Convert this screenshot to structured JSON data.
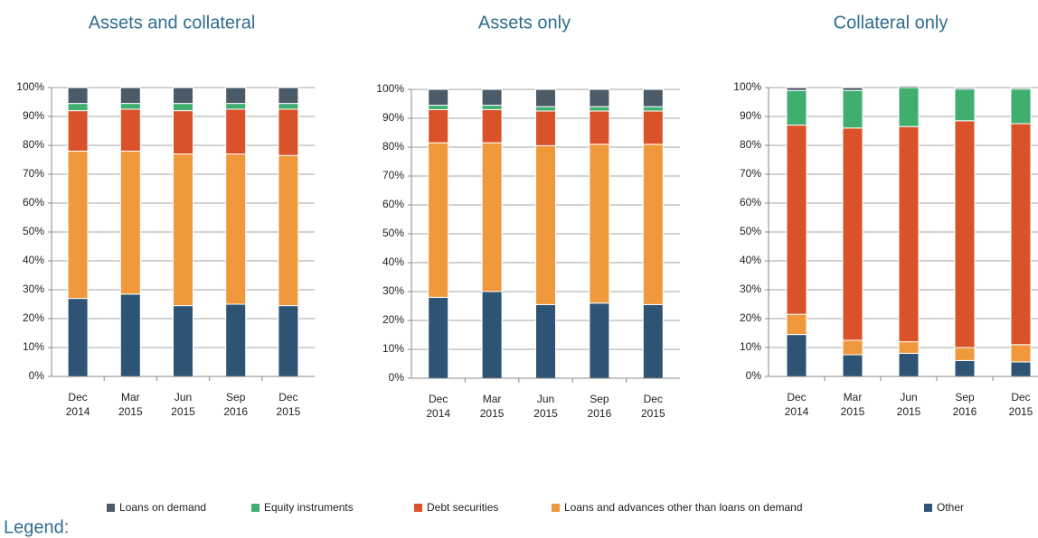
{
  "legend_title": "Legend:",
  "chart_data": [
    {
      "type": "stacked-bar",
      "title": "Assets and collateral",
      "categories": [
        "Dec 2014",
        "Mar 2015",
        "Jun 2015",
        "Sep 2016",
        "Dec 2015"
      ],
      "series": [
        {
          "name": "Loans on demand",
          "color": "#4b5b67",
          "values": [
            5.5,
            5.5,
            5.5,
            5.5,
            5.5
          ]
        },
        {
          "name": "Equity instruments",
          "color": "#3fae6f",
          "values": [
            2.5,
            2,
            2.5,
            2,
            2
          ]
        },
        {
          "name": "Debt securities",
          "color": "#d9522a",
          "values": [
            14,
            14.5,
            15,
            15.5,
            16
          ]
        },
        {
          "name": "Loans and advances other than loans on demand",
          "color": "#f0983c",
          "values": [
            51,
            49.5,
            52.5,
            52,
            52
          ]
        },
        {
          "name": "Other",
          "color": "#2e5475",
          "values": [
            27,
            28.5,
            24.5,
            25,
            24.5
          ]
        }
      ],
      "ylim": [
        0,
        100
      ],
      "yticks": [
        {
          "value": 0,
          "label": "0%"
        },
        {
          "value": 10,
          "label": "10%"
        },
        {
          "value": 20,
          "label": "20%"
        },
        {
          "value": 30,
          "label": "30%"
        },
        {
          "value": 40,
          "label": "40%"
        },
        {
          "value": 50,
          "label": "50%"
        },
        {
          "value": 60,
          "label": "60%"
        },
        {
          "value": 70,
          "label": "70%"
        },
        {
          "value": 80,
          "label": "80%"
        },
        {
          "value": 90,
          "label": "90%"
        },
        {
          "value": 100,
          "label": "100%"
        }
      ],
      "grid": true
    },
    {
      "type": "stacked-bar",
      "title": "Assets only",
      "categories": [
        "Dec 2014",
        "Mar 2015",
        "Jun 2015",
        "Sep 2016",
        "Dec 2015"
      ],
      "series": [
        {
          "name": "Loans on demand",
          "color": "#4b5b67",
          "values": [
            5.5,
            5.5,
            6,
            6,
            6
          ]
        },
        {
          "name": "Equity instruments",
          "color": "#3fae6f",
          "values": [
            1.5,
            1.5,
            1.5,
            1.5,
            1.5
          ]
        },
        {
          "name": "Debt securities",
          "color": "#d9522a",
          "values": [
            11.5,
            11.5,
            12,
            11.5,
            11.5
          ]
        },
        {
          "name": "Loans and advances other than loans on demand",
          "color": "#f0983c",
          "values": [
            53.5,
            51.5,
            55,
            55,
            55.5
          ]
        },
        {
          "name": "Other",
          "color": "#2e5475",
          "values": [
            28,
            30,
            25.5,
            26,
            25.5
          ]
        }
      ],
      "ylim": [
        0,
        100
      ],
      "yticks": [
        {
          "value": 0,
          "label": "0%"
        },
        {
          "value": 10,
          "label": "10%"
        },
        {
          "value": 20,
          "label": "20%"
        },
        {
          "value": 30,
          "label": "30%"
        },
        {
          "value": 40,
          "label": "40%"
        },
        {
          "value": 50,
          "label": "50%"
        },
        {
          "value": 60,
          "label": "60%"
        },
        {
          "value": 70,
          "label": "70%"
        },
        {
          "value": 80,
          "label": "80%"
        },
        {
          "value": 90,
          "label": "90%"
        },
        {
          "value": 100,
          "label": "100%"
        }
      ],
      "grid": true
    },
    {
      "type": "stacked-bar",
      "title": "Collateral only",
      "categories": [
        "Dec 2014",
        "Mar 2015",
        "Jun 2015",
        "Sep 2016",
        "Dec 2015"
      ],
      "series": [
        {
          "name": "Loans on demand",
          "color": "#4b5b67",
          "values": [
            1,
            1,
            0.5,
            0.5,
            0.5
          ]
        },
        {
          "name": "Equity instruments",
          "color": "#3fae6f",
          "values": [
            12,
            13,
            13.5,
            11,
            12
          ]
        },
        {
          "name": "Debt securities",
          "color": "#d9522a",
          "values": [
            65.5,
            73.5,
            74.5,
            78.5,
            76.5
          ]
        },
        {
          "name": "Loans and advances other than loans on demand",
          "color": "#f0983c",
          "values": [
            7,
            5,
            4,
            4.5,
            6
          ]
        },
        {
          "name": "Other",
          "color": "#2e5475",
          "values": [
            14.5,
            7.5,
            8,
            5.5,
            5
          ]
        }
      ],
      "ylim": [
        0,
        100
      ],
      "yticks": [
        {
          "value": 0,
          "label": "0%"
        },
        {
          "value": 10,
          "label": "10%"
        },
        {
          "value": 20,
          "label": "20%"
        },
        {
          "value": 30,
          "label": "30%"
        },
        {
          "value": 40,
          "label": "40%"
        },
        {
          "value": 50,
          "label": "50%"
        },
        {
          "value": 60,
          "label": "60%"
        },
        {
          "value": 70,
          "label": "70%"
        },
        {
          "value": 80,
          "label": "80%"
        },
        {
          "value": 90,
          "label": "90%"
        },
        {
          "value": 100,
          "label": "100%"
        }
      ],
      "grid": true
    }
  ]
}
